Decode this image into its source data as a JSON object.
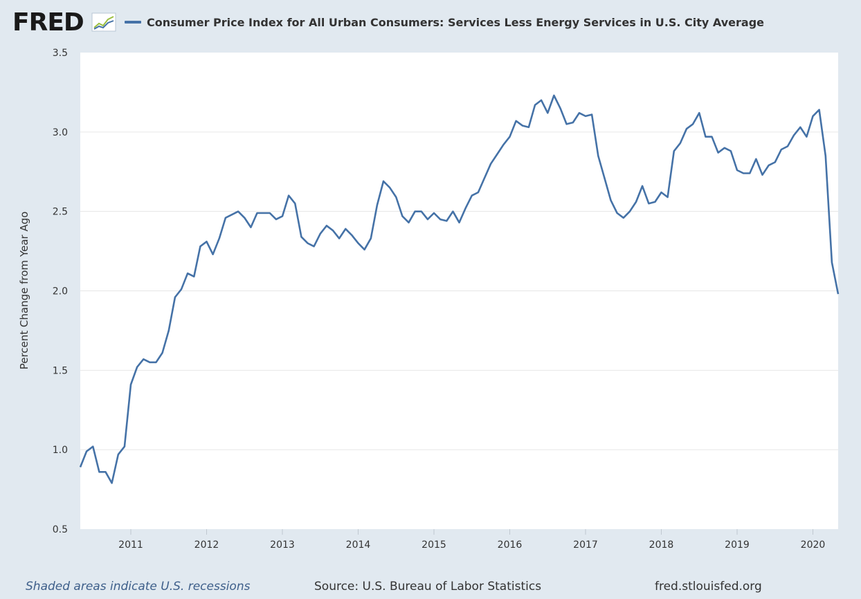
{
  "header": {
    "logo_text": "FRED",
    "logo_icon": "line-chart-icon"
  },
  "legend": {
    "label": "Consumer Price Index for All Urban Consumers: Services Less Energy Services in U.S. City Average",
    "color": "#4572a7"
  },
  "footer": {
    "recession_note": "Shaded areas indicate U.S. recessions",
    "source": "Source: U.S. Bureau of Labor Statistics",
    "url": "fred.stlouisfed.org"
  },
  "chart_data": {
    "type": "line",
    "title": "Consumer Price Index for All Urban Consumers: Services Less Energy Services in U.S. City Average",
    "xlabel": "",
    "ylabel": "Percent Change from Year Ago",
    "xlim": [
      "2010-05",
      "2020-05"
    ],
    "ylim": [
      0.5,
      3.5
    ],
    "yticks": [
      "0.5",
      "1.0",
      "1.5",
      "2.0",
      "2.5",
      "3.0",
      "3.5"
    ],
    "xticks": [
      "2011",
      "2012",
      "2013",
      "2014",
      "2015",
      "2016",
      "2017",
      "2018",
      "2019",
      "2020"
    ],
    "grid": "horizontal",
    "legend_position": "top-left",
    "colors": {
      "line": "#4572a7",
      "plot_bg": "#ffffff",
      "page_bg": "#e1e9f0",
      "grid": "#e6e6e6"
    },
    "series": [
      {
        "name": "Consumer Price Index for All Urban Consumers: Services Less Energy Services in U.S. City Average",
        "x": [
          "2010-05",
          "2010-06",
          "2010-07",
          "2010-08",
          "2010-09",
          "2010-10",
          "2010-11",
          "2010-12",
          "2011-01",
          "2011-02",
          "2011-03",
          "2011-04",
          "2011-05",
          "2011-06",
          "2011-07",
          "2011-08",
          "2011-09",
          "2011-10",
          "2011-11",
          "2011-12",
          "2012-01",
          "2012-02",
          "2012-03",
          "2012-04",
          "2012-05",
          "2012-06",
          "2012-07",
          "2012-08",
          "2012-09",
          "2012-10",
          "2012-11",
          "2012-12",
          "2013-01",
          "2013-02",
          "2013-03",
          "2013-04",
          "2013-05",
          "2013-06",
          "2013-07",
          "2013-08",
          "2013-09",
          "2013-10",
          "2013-11",
          "2013-12",
          "2014-01",
          "2014-02",
          "2014-03",
          "2014-04",
          "2014-05",
          "2014-06",
          "2014-07",
          "2014-08",
          "2014-09",
          "2014-10",
          "2014-11",
          "2014-12",
          "2015-01",
          "2015-02",
          "2015-03",
          "2015-04",
          "2015-05",
          "2015-06",
          "2015-07",
          "2015-08",
          "2015-09",
          "2015-10",
          "2015-11",
          "2015-12",
          "2016-01",
          "2016-02",
          "2016-03",
          "2016-04",
          "2016-05",
          "2016-06",
          "2016-07",
          "2016-08",
          "2016-09",
          "2016-10",
          "2016-11",
          "2016-12",
          "2017-01",
          "2017-02",
          "2017-03",
          "2017-04",
          "2017-05",
          "2017-06",
          "2017-07",
          "2017-08",
          "2017-09",
          "2017-10",
          "2017-11",
          "2017-12",
          "2018-01",
          "2018-02",
          "2018-03",
          "2018-04",
          "2018-05",
          "2018-06",
          "2018-07",
          "2018-08",
          "2018-09",
          "2018-10",
          "2018-11",
          "2018-12",
          "2019-01",
          "2019-02",
          "2019-03",
          "2019-04",
          "2019-05",
          "2019-06",
          "2019-07",
          "2019-08",
          "2019-09",
          "2019-10",
          "2019-11",
          "2019-12",
          "2020-01",
          "2020-02",
          "2020-03",
          "2020-04",
          "2020-05"
        ],
        "values": [
          0.89,
          0.99,
          1.02,
          0.86,
          0.86,
          0.79,
          0.97,
          1.02,
          1.41,
          1.52,
          1.57,
          1.55,
          1.55,
          1.61,
          1.75,
          1.96,
          2.01,
          2.11,
          2.09,
          2.28,
          2.31,
          2.23,
          2.33,
          2.46,
          2.48,
          2.5,
          2.46,
          2.4,
          2.49,
          2.49,
          2.49,
          2.45,
          2.47,
          2.6,
          2.55,
          2.34,
          2.3,
          2.28,
          2.36,
          2.41,
          2.38,
          2.33,
          2.39,
          2.35,
          2.3,
          2.26,
          2.33,
          2.54,
          2.69,
          2.65,
          2.59,
          2.47,
          2.43,
          2.5,
          2.5,
          2.45,
          2.49,
          2.45,
          2.44,
          2.5,
          2.43,
          2.52,
          2.6,
          2.62,
          2.71,
          2.8,
          2.86,
          2.92,
          2.97,
          3.07,
          3.04,
          3.03,
          3.17,
          3.2,
          3.12,
          3.23,
          3.15,
          3.05,
          3.06,
          3.12,
          3.1,
          3.11,
          2.85,
          2.71,
          2.57,
          2.49,
          2.46,
          2.5,
          2.56,
          2.66,
          2.55,
          2.56,
          2.62,
          2.59,
          2.88,
          2.93,
          3.02,
          3.05,
          3.12,
          2.97,
          2.97,
          2.87,
          2.9,
          2.88,
          2.76,
          2.74,
          2.74,
          2.83,
          2.73,
          2.79,
          2.81,
          2.89,
          2.91,
          2.98,
          3.03,
          2.97,
          3.1,
          3.14,
          2.85,
          2.18,
          1.98
        ]
      }
    ]
  }
}
